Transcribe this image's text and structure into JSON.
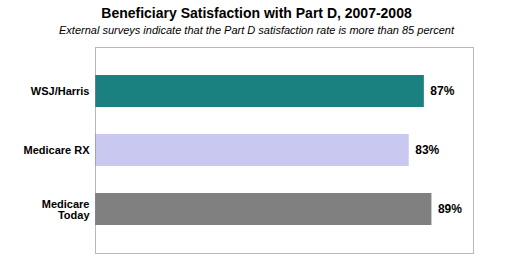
{
  "chart_data": {
    "type": "bar",
    "orientation": "horizontal",
    "title": "Beneficiary Satisfaction with Part D, 2007-2008",
    "subtitle": "External surveys indicate that the Part D satisfaction rate is more than 85 percent",
    "categories": [
      "WSJ/Harris",
      "Medicare RX",
      "Medicare\nToday"
    ],
    "values": [
      87,
      83,
      89
    ],
    "value_labels": [
      "87%",
      "83%",
      "89%"
    ],
    "colors": [
      "#1a8080",
      "#c8c8f0",
      "#808080"
    ],
    "xlim": [
      0,
      100
    ],
    "data_labels": true,
    "tick_labels": "y",
    "grid": false
  }
}
